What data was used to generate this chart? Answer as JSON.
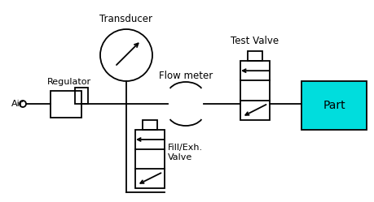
{
  "bg_color": "#ffffff",
  "line_color": "#000000",
  "part_color": "#00dddd",
  "part_label": "Part",
  "air_label": "Air",
  "regulator_label": "Regulator",
  "transducer_label": "Transducer",
  "flowmeter_label": "Flow meter",
  "test_valve_label": "Test Valve",
  "fill_valve_label": "Fill/Exh.\nValve",
  "fig_width": 4.59,
  "fig_height": 2.49,
  "dpi": 100
}
